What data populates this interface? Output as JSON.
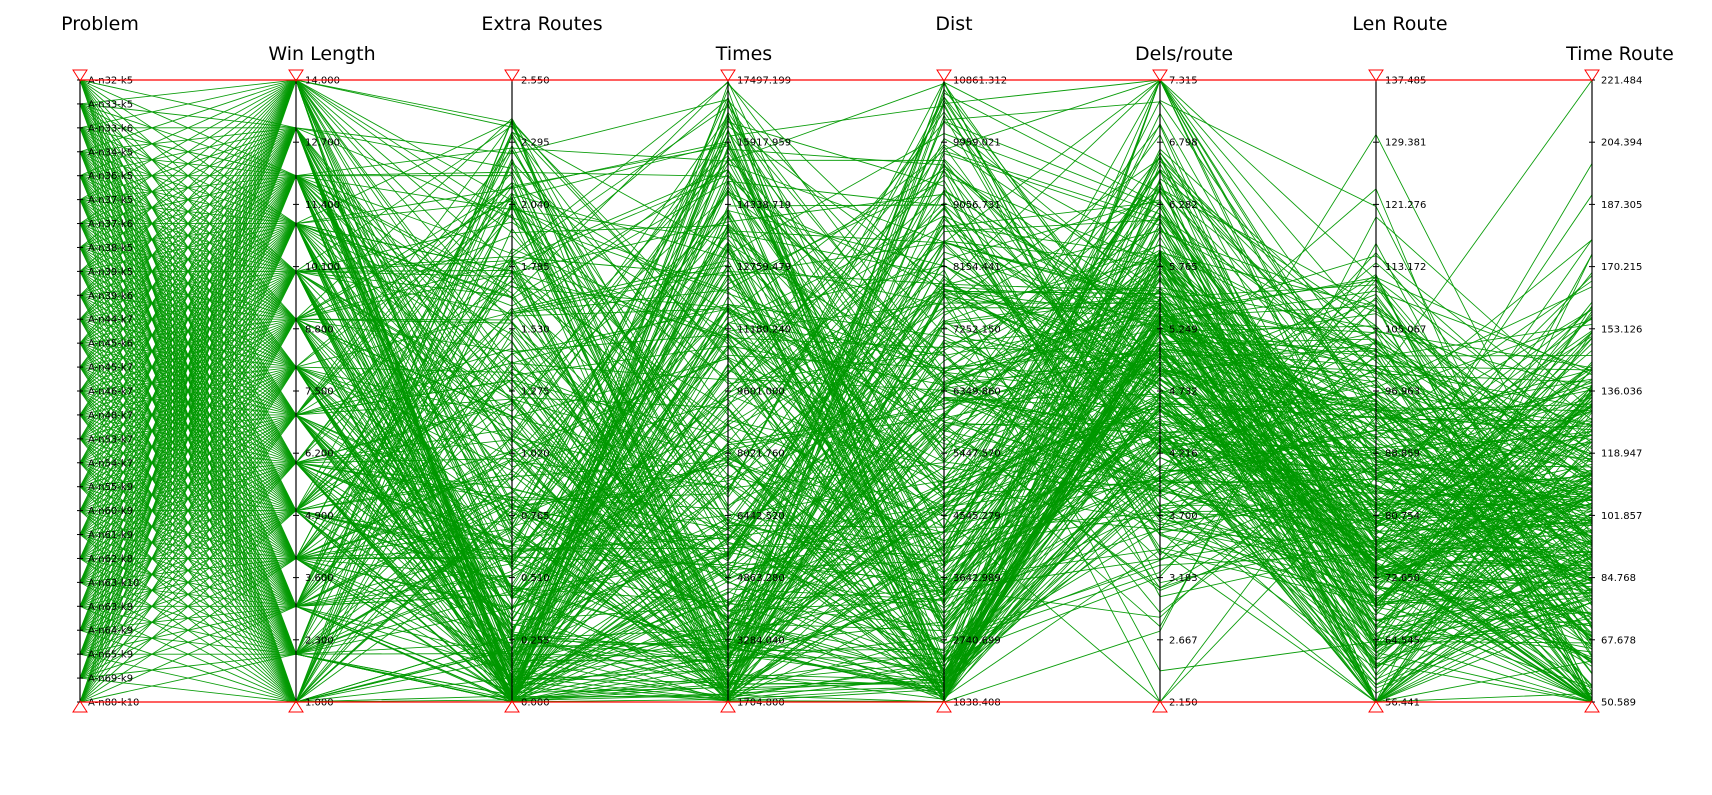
{
  "chart_data": {
    "type": "parallel-coordinates",
    "line_color": "#009900",
    "boundary_color": "#ff0000",
    "axes": [
      {
        "name": "Problem",
        "categorical": true,
        "categories": [
          "A-n32-k5",
          "A-n33-k5",
          "A-n33-k6",
          "A-n34-k5",
          "A-n36-k5",
          "A-n37-k5",
          "A-n37-k6",
          "A-n38-k5",
          "A-n39-k5",
          "A-n39-k6",
          "A-n44-k7",
          "A-n45-k6",
          "A-n45-k7",
          "A-n46-k7",
          "A-n48-k7",
          "A-n53-k7",
          "A-n54-k7",
          "A-n55-k9",
          "A-n60-k9",
          "A-n61-k9",
          "A-n62-k8",
          "A-n63-k10",
          "A-n63-k9",
          "A-n64-k9",
          "A-n65-k9",
          "A-n69-k9",
          "A-n80-k10"
        ]
      },
      {
        "name": "Win Length",
        "min": 1.0,
        "max": 14.0,
        "ticks": [
          "14.000",
          "12.700",
          "11.400",
          "10.100",
          "8.800",
          "7.500",
          "6.200",
          "4.900",
          "3.600",
          "2.300",
          "1.000"
        ]
      },
      {
        "name": "Extra Routes",
        "min": 0.0,
        "max": 2.55,
        "ticks": [
          "2.550",
          "2.295",
          "2.040",
          "1.785",
          "1.530",
          "1.275",
          "1.020",
          "0.765",
          "0.510",
          "0.255",
          "0.000"
        ]
      },
      {
        "name": "Times",
        "min": 1704.8,
        "max": 17497.199,
        "ticks": [
          "17497.199",
          "15917.959",
          "14338.719",
          "12759.479",
          "11180.240",
          "9601.000",
          "8021.760",
          "6442.520",
          "4863.280",
          "3284.040",
          "1704.800"
        ]
      },
      {
        "name": "Dist",
        "min": 1838.408,
        "max": 10861.312,
        "ticks": [
          "10861.312",
          "9959.021",
          "9056.731",
          "8154.441",
          "7252.150",
          "6349.860",
          "5447.570",
          "4545.279",
          "3642.989",
          "2740.699",
          "1838.408"
        ]
      },
      {
        "name": "Dels/route",
        "min": 2.15,
        "max": 7.315,
        "ticks": [
          "7.315",
          "6.798",
          "6.282",
          "5.765",
          "5.249",
          "4.732",
          "4.216",
          "3.700",
          "3.183",
          "2.667",
          "2.150"
        ]
      },
      {
        "name": "Len Route",
        "min": 56.441,
        "max": 137.485,
        "ticks": [
          "137.485",
          "129.381",
          "121.276",
          "113.172",
          "105.067",
          "96.963",
          "88.859",
          "80.754",
          "72.650",
          "64.545",
          "56.441"
        ]
      },
      {
        "name": "Time Route",
        "min": 50.589,
        "max": 221.484,
        "ticks": [
          "221.484",
          "204.394",
          "187.305",
          "170.215",
          "153.126",
          "136.036",
          "118.947",
          "101.857",
          "84.768",
          "67.678",
          "50.589"
        ]
      }
    ],
    "win_length_values": [
      1,
      2,
      3,
      4,
      5,
      6,
      7,
      8,
      9,
      10,
      11,
      12,
      13,
      14
    ],
    "records": []
  }
}
